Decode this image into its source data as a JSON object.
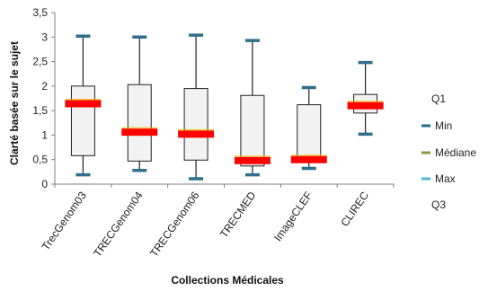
{
  "chart_data": {
    "type": "boxplot",
    "xlabel": "Collections Médicales",
    "ylabel": "Clarté basée sur le sujet",
    "ylim": [
      0,
      3.5
    ],
    "yticks": [
      "0",
      "0,5",
      "1",
      "1,5",
      "2",
      "2,5",
      "3",
      "3,5"
    ],
    "ytick_values": [
      0,
      0.5,
      1,
      1.5,
      2,
      2.5,
      3,
      3.5
    ],
    "categories": [
      "TrecGenom03",
      "TRECGenom04",
      "TRECGenom06",
      "TRECMED",
      "ImageCLEF",
      "CLIREC"
    ],
    "series": [
      {
        "name": "Q1",
        "values": [
          0.58,
          0.47,
          0.49,
          0.37,
          0.45,
          1.45
        ]
      },
      {
        "name": "Min",
        "values": [
          0.19,
          0.28,
          0.11,
          0.19,
          0.32,
          1.02
        ]
      },
      {
        "name": "Médiane",
        "values": [
          1.64,
          1.06,
          1.02,
          0.48,
          0.5,
          1.6
        ]
      },
      {
        "name": "Max",
        "values": [
          3.02,
          3.0,
          3.04,
          2.93,
          1.97,
          2.48
        ]
      },
      {
        "name": "Q3",
        "values": [
          2.0,
          2.03,
          1.95,
          1.81,
          1.62,
          1.83
        ]
      }
    ],
    "legend": {
      "position": "right",
      "items": [
        "Q1",
        "Min",
        "Médiane",
        "Max",
        "Q3"
      ]
    },
    "colors": {
      "median": "#ff0000",
      "whisker_cap": "#2f6f87",
      "box_fill": "#f2f2f2",
      "box_stroke": "#222222",
      "legend_min": "#1f6e8c",
      "legend_median": "#8c9a3a",
      "legend_max": "#4bb8d6"
    },
    "grid": false
  }
}
